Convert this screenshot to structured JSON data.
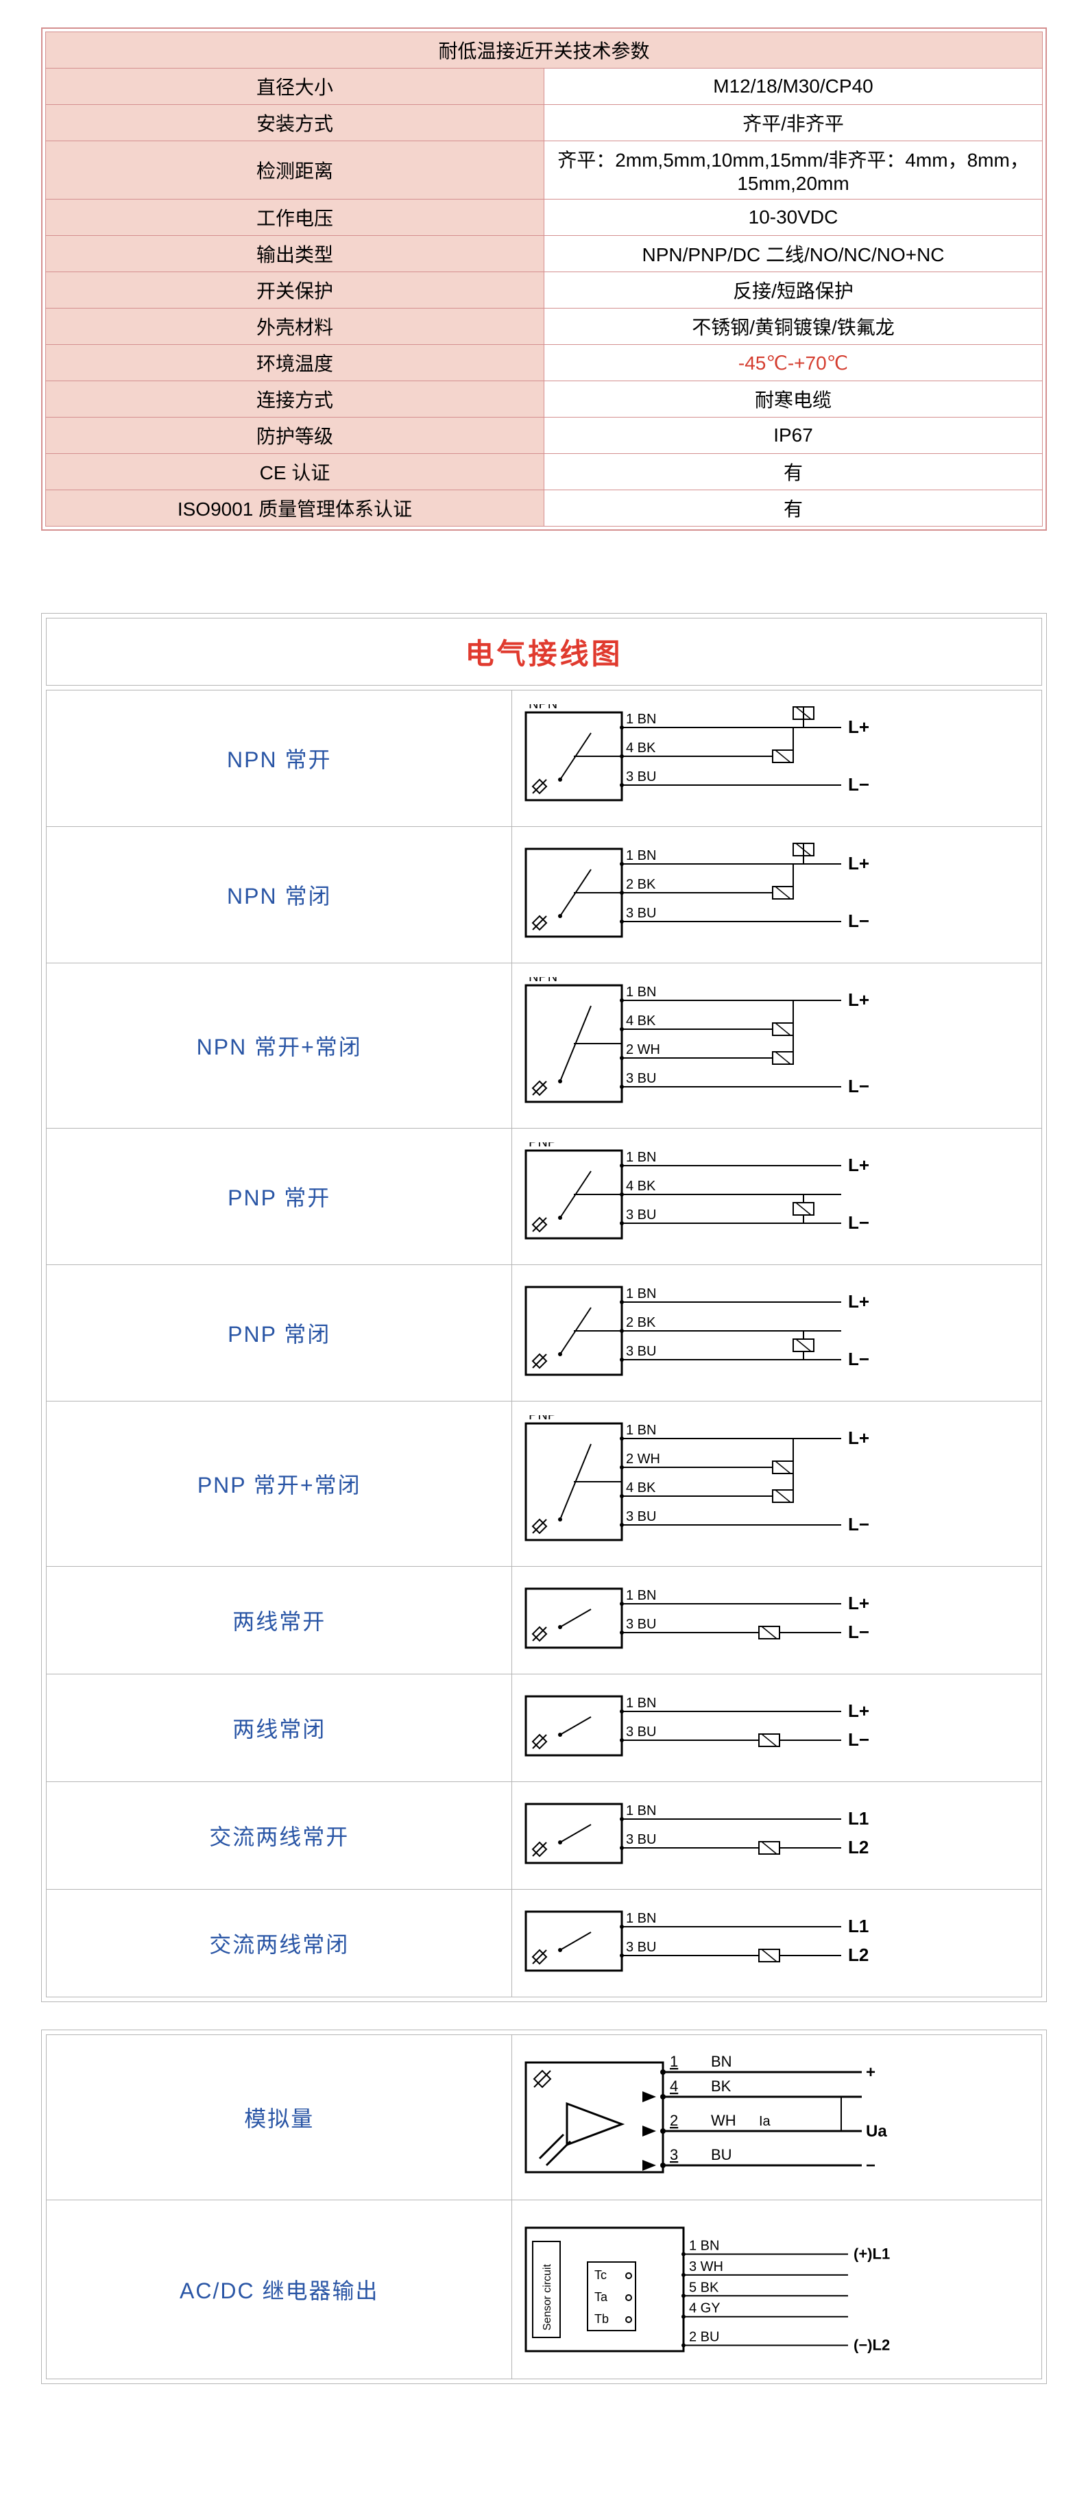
{
  "specs": {
    "title": "耐低温接近开关技术参数",
    "title_bg": "#f4d5cd",
    "label_bg": "#f4d5cd",
    "border_color": "#d48f8f",
    "value_bg": "#ffffff",
    "red_color": "#d43c2e",
    "font_size": 28,
    "rows": [
      {
        "label": "直径大小",
        "value": "M12/18/M30/CP40"
      },
      {
        "label": "安装方式",
        "value": "齐平/非齐平"
      },
      {
        "label": "检测距离",
        "value": "齐平：2mm,5mm,10mm,15mm/非齐平：4mm，8mm，15mm,20mm"
      },
      {
        "label": "工作电压",
        "value": "10-30VDC"
      },
      {
        "label": "输出类型",
        "value": "NPN/PNP/DC 二线/NO/NC/NO+NC"
      },
      {
        "label": "开关保护",
        "value": "反接/短路保护"
      },
      {
        "label": "外壳材料",
        "value": "不锈钢/黄铜镀镍/铁氟龙"
      },
      {
        "label": "环境温度",
        "value": "-45℃-+70℃",
        "red": true
      },
      {
        "label": "连接方式",
        "value": "耐寒电缆"
      },
      {
        "label": "防护等级",
        "value": "IP67"
      },
      {
        "label": "CE 认证",
        "value": "有"
      },
      {
        "label": "ISO9001 质量管理体系认证",
        "value": "有"
      }
    ]
  },
  "wiring": {
    "title": "电气接线图",
    "title_color": "#e03a2e",
    "title_fontsize": 42,
    "label_color": "#2955a5",
    "label_fontsize": 32,
    "border_color": "#b5b5b5",
    "diagram_stroke": "#000000",
    "diagram_text_font": 20,
    "diagram_bold_font": 24,
    "rows": [
      {
        "label": "NPN 常开",
        "heading": "NPN",
        "wires": [
          {
            "num": "1",
            "code": "BN",
            "term": "L+",
            "load": "above"
          },
          {
            "num": "4",
            "code": "BK",
            "term": "",
            "load": "inline"
          },
          {
            "num": "3",
            "code": "BU",
            "term": "L−"
          }
        ]
      },
      {
        "label": "NPN 常闭",
        "heading": "",
        "wires": [
          {
            "num": "1",
            "code": "BN",
            "term": "L+",
            "load": "above"
          },
          {
            "num": "2",
            "code": "BK",
            "term": "",
            "load": "inline"
          },
          {
            "num": "3",
            "code": "BU",
            "term": "L−"
          }
        ]
      },
      {
        "label": "NPN  常开+常闭",
        "heading": "NPN",
        "wires": [
          {
            "num": "1",
            "code": "BN",
            "term": "L+"
          },
          {
            "num": "4",
            "code": "BK",
            "term": "",
            "load": "inline"
          },
          {
            "num": "2",
            "code": "WH",
            "term": "",
            "load": "inline"
          },
          {
            "num": "3",
            "code": "BU",
            "term": "L−"
          }
        ]
      },
      {
        "label": "PNP 常开",
        "heading": "PNP",
        "wires": [
          {
            "num": "1",
            "code": "BN",
            "term": "L+"
          },
          {
            "num": "4",
            "code": "BK",
            "term": ""
          },
          {
            "num": "3",
            "code": "BU",
            "term": "L−",
            "load": "above"
          }
        ]
      },
      {
        "label": "PNP 常闭",
        "heading": "",
        "wires": [
          {
            "num": "1",
            "code": "BN",
            "term": "L+"
          },
          {
            "num": "2",
            "code": "BK",
            "term": ""
          },
          {
            "num": "3",
            "code": "BU",
            "term": "L−",
            "load": "above"
          }
        ]
      },
      {
        "label": "PNP 常开+常闭",
        "heading": "PNP",
        "wires": [
          {
            "num": "1",
            "code": "BN",
            "term": "L+"
          },
          {
            "num": "2",
            "code": "WH",
            "term": "",
            "load": "inline"
          },
          {
            "num": "4",
            "code": "BK",
            "term": "",
            "load": "inline"
          },
          {
            "num": "3",
            "code": "BU",
            "term": "L−"
          }
        ]
      },
      {
        "label": "两线常开",
        "heading": "",
        "wires": [
          {
            "num": "1",
            "code": "BN",
            "term": "L+"
          },
          {
            "num": "3",
            "code": "BU",
            "term": "L−",
            "load": "before"
          }
        ]
      },
      {
        "label": "两线常闭",
        "heading": "",
        "wires": [
          {
            "num": "1",
            "code": "BN",
            "term": "L+"
          },
          {
            "num": "3",
            "code": "BU",
            "term": "L−",
            "load": "before"
          }
        ]
      },
      {
        "label": "交流两线常开",
        "heading": "",
        "wires": [
          {
            "num": "1",
            "code": "BN",
            "term": "L1"
          },
          {
            "num": "3",
            "code": "BU",
            "term": "L2",
            "load": "before"
          }
        ]
      },
      {
        "label": "交流两线常闭",
        "heading": "",
        "wires": [
          {
            "num": "1",
            "code": "BN",
            "term": "L1"
          },
          {
            "num": "3",
            "code": "BU",
            "term": "L2",
            "load": "before"
          }
        ]
      }
    ],
    "extra_rows": [
      {
        "label": "模拟量",
        "analog": true,
        "wires": [
          {
            "num": "1",
            "code": "BN",
            "term": "+"
          },
          {
            "num": "4",
            "code": "BK",
            "term": ""
          },
          {
            "num": "2",
            "code": "WH",
            "term": "Ua",
            "sub": "Ia"
          },
          {
            "num": "3",
            "code": "BU",
            "term": "−"
          }
        ]
      },
      {
        "label": "AC/DC 继电器输出",
        "relay": true,
        "sensor_label": "Sensor circuit",
        "contacts": [
          "Tc",
          "Ta",
          "Tb"
        ],
        "wires": [
          {
            "num": "1",
            "code": "BN",
            "term": "(+)L1"
          },
          {
            "num": "3",
            "code": "WH",
            "term": ""
          },
          {
            "num": "5",
            "code": "BK",
            "term": ""
          },
          {
            "num": "4",
            "code": "GY",
            "term": ""
          },
          {
            "num": "2",
            "code": "BU",
            "term": "(−)L2"
          }
        ]
      }
    ]
  }
}
